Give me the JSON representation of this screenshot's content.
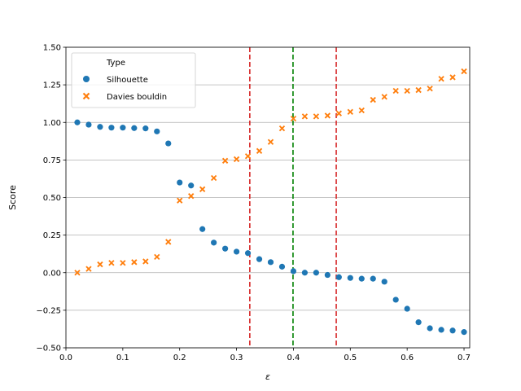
{
  "chart_data": {
    "type": "scatter",
    "title": "",
    "xlabel": "ε",
    "ylabel": "Score",
    "xlim": [
      0.0,
      0.71
    ],
    "ylim": [
      -0.5,
      1.5
    ],
    "xticks": [
      "0.0",
      "0.1",
      "0.2",
      "0.3",
      "0.4",
      "0.5",
      "0.6",
      "0.7"
    ],
    "yticks": [
      "−0.50",
      "−0.25",
      "0.00",
      "0.25",
      "0.50",
      "0.75",
      "1.00",
      "1.25",
      "1.50"
    ],
    "grid": "horizontal",
    "legend": {
      "title": "Type",
      "placement": "top-left",
      "entries": [
        "Silhouette",
        "Davies bouldin"
      ]
    },
    "series": [
      {
        "name": "Silhouette",
        "marker": "circle",
        "color": "#1f77b4",
        "x": [
          0.02,
          0.04,
          0.06,
          0.08,
          0.1,
          0.12,
          0.14,
          0.16,
          0.18,
          0.2,
          0.22,
          0.24,
          0.26,
          0.28,
          0.3,
          0.32,
          0.34,
          0.36,
          0.38,
          0.4,
          0.42,
          0.44,
          0.46,
          0.48,
          0.5,
          0.52,
          0.54,
          0.56,
          0.58,
          0.6,
          0.62,
          0.64,
          0.66,
          0.68,
          0.7
        ],
        "y": [
          1.0,
          0.985,
          0.97,
          0.965,
          0.965,
          0.962,
          0.96,
          0.94,
          0.86,
          0.6,
          0.58,
          0.29,
          0.2,
          0.16,
          0.14,
          0.13,
          0.09,
          0.07,
          0.04,
          0.01,
          0.0,
          0.0,
          -0.015,
          -0.03,
          -0.035,
          -0.04,
          -0.04,
          -0.06,
          -0.18,
          -0.24,
          -0.33,
          -0.37,
          -0.38,
          -0.385,
          -0.395
        ]
      },
      {
        "name": "Davies bouldin",
        "marker": "x",
        "color": "#ff7f0e",
        "x": [
          0.02,
          0.04,
          0.06,
          0.08,
          0.1,
          0.12,
          0.14,
          0.16,
          0.18,
          0.2,
          0.22,
          0.24,
          0.26,
          0.28,
          0.3,
          0.32,
          0.34,
          0.36,
          0.38,
          0.4,
          0.42,
          0.44,
          0.46,
          0.48,
          0.5,
          0.52,
          0.54,
          0.56,
          0.58,
          0.6,
          0.62,
          0.64,
          0.66,
          0.68,
          0.7
        ],
        "y": [
          0.0,
          0.025,
          0.055,
          0.065,
          0.065,
          0.07,
          0.075,
          0.105,
          0.205,
          0.48,
          0.51,
          0.555,
          0.63,
          0.745,
          0.755,
          0.775,
          0.81,
          0.87,
          0.96,
          1.025,
          1.04,
          1.04,
          1.045,
          1.06,
          1.07,
          1.08,
          1.15,
          1.17,
          1.21,
          1.21,
          1.215,
          1.225,
          1.29,
          1.3,
          1.34
        ]
      }
    ],
    "vlines": [
      {
        "x": 0.3233,
        "color": "#d62728",
        "style": "dashed"
      },
      {
        "x": 0.3993,
        "color": "#008000",
        "style": "dashed"
      },
      {
        "x": 0.4753,
        "color": "#d62728",
        "style": "dashed"
      }
    ]
  }
}
